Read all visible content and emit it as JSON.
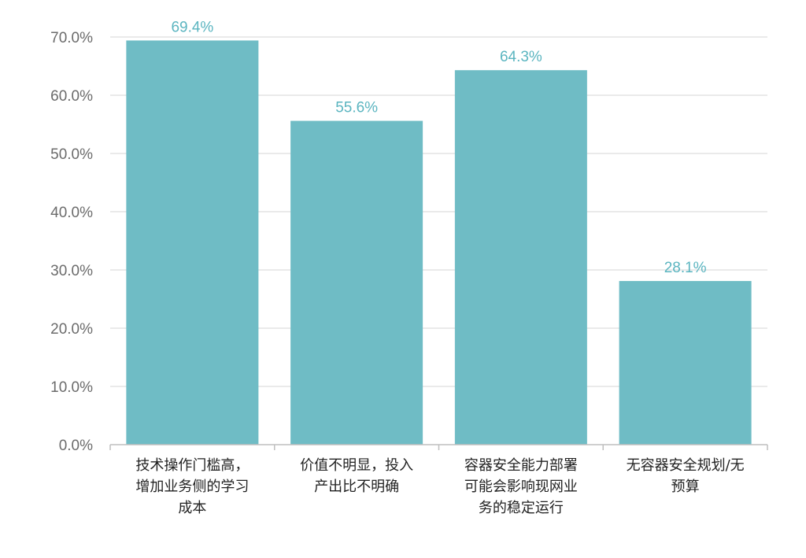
{
  "chart_data": {
    "type": "bar",
    "categories": [
      [
        "技术操作门槛高，",
        "增加业务侧的学习",
        "成本"
      ],
      [
        "价值不明显，投入",
        "产出比不明确"
      ],
      [
        "容器安全能力部署",
        "可能会影响现网业",
        "务的稳定运行"
      ],
      [
        "无容器安全规划/无",
        "预算"
      ]
    ],
    "values": [
      69.4,
      55.6,
      64.3,
      28.1
    ],
    "data_labels": [
      "69.4%",
      "55.6%",
      "64.3%",
      "28.1%"
    ],
    "yticks": [
      0,
      10,
      20,
      30,
      40,
      50,
      60,
      70
    ],
    "ytick_labels": [
      "0.0%",
      "10.0%",
      "20.0%",
      "30.0%",
      "40.0%",
      "50.0%",
      "60.0%",
      "70.0%"
    ],
    "ylim": [
      0,
      70
    ],
    "grid": true,
    "title": "",
    "xlabel": "",
    "ylabel": "",
    "colors": {
      "bar": "#6fbcc5",
      "data_label": "#5bb5c0",
      "grid": "#d4d4d4",
      "axis": "#bfbfbf"
    }
  }
}
